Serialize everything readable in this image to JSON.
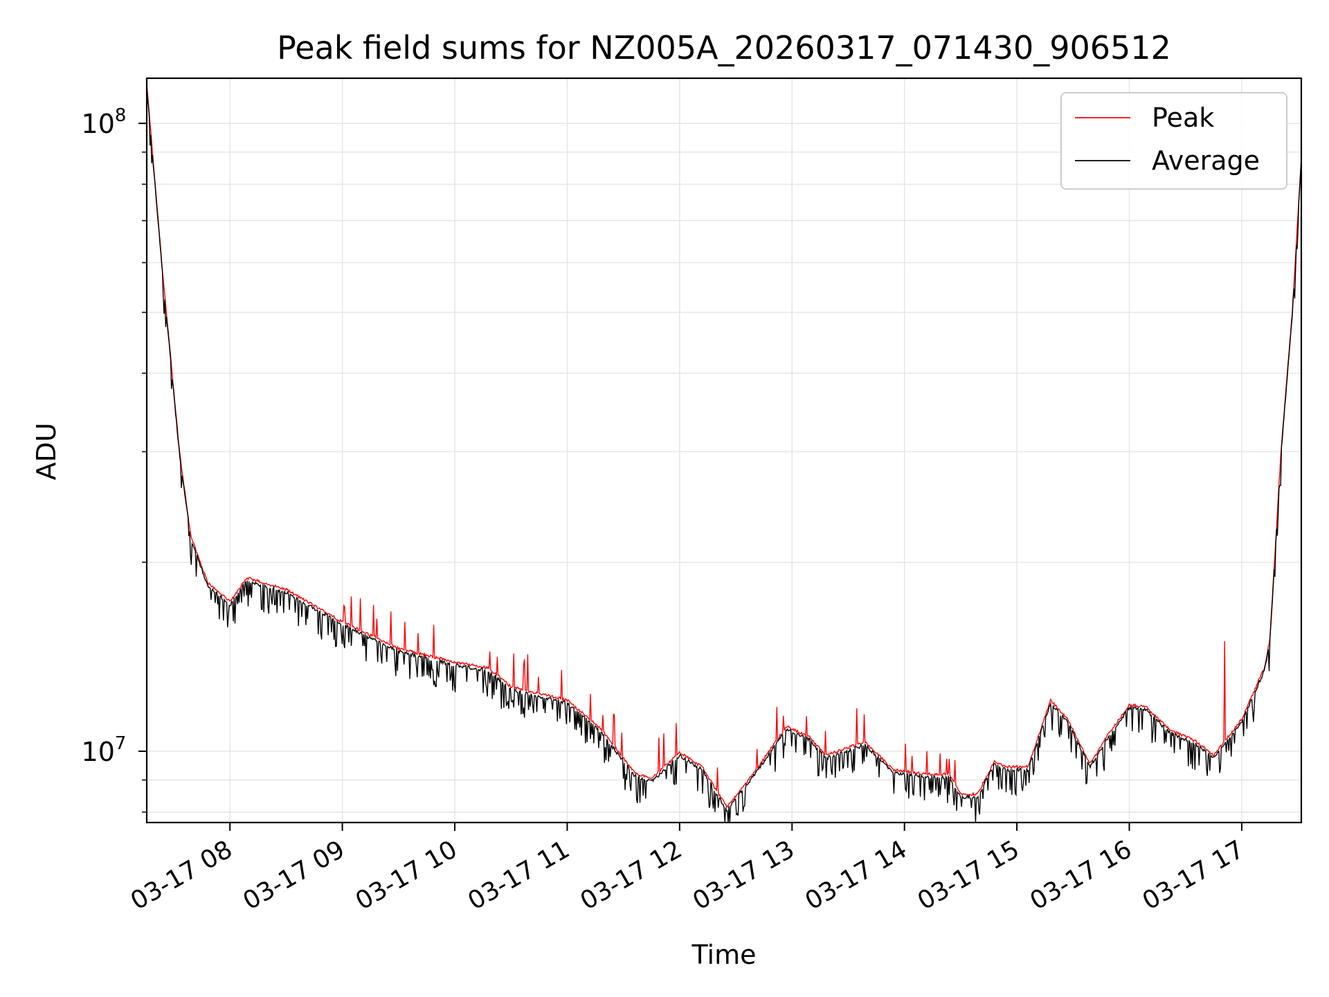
{
  "chart_data": {
    "type": "line",
    "title": "Peak field sums for NZ005A_20260317_071430_906512",
    "xlabel": "Time",
    "ylabel": "ADU",
    "yscale": "log",
    "ylim": [
      7700000,
      118000000
    ],
    "xlim_hours": [
      7.26,
      17.53
    ],
    "x_ticks": [
      {
        "value": 8,
        "label": "03-17 08"
      },
      {
        "value": 9,
        "label": "03-17 09"
      },
      {
        "value": 10,
        "label": "03-17 10"
      },
      {
        "value": 11,
        "label": "03-17 11"
      },
      {
        "value": 12,
        "label": "03-17 12"
      },
      {
        "value": 13,
        "label": "03-17 13"
      },
      {
        "value": 14,
        "label": "03-17 14"
      },
      {
        "value": 15,
        "label": "03-17 15"
      },
      {
        "value": 16,
        "label": "03-17 16"
      },
      {
        "value": 17,
        "label": "03-17 17"
      }
    ],
    "y_major_ticks": [
      {
        "value": 10000000,
        "base": "10",
        "exp": "7"
      },
      {
        "value": 100000000,
        "base": "10",
        "exp": "8"
      }
    ],
    "y_minor_ticks": [
      8000000,
      9000000,
      20000000,
      30000000,
      40000000,
      50000000,
      60000000,
      70000000,
      80000000,
      90000000
    ],
    "grid": true,
    "legend_position": "top-right",
    "series": [
      {
        "name": "Peak",
        "color": "#ff0000"
      },
      {
        "name": "Average",
        "color": "#000000"
      }
    ],
    "baseline": [
      [
        7.26,
        115000000
      ],
      [
        7.4,
        58000000
      ],
      [
        7.55,
        30000000
      ],
      [
        7.65,
        22000000
      ],
      [
        7.8,
        18500000
      ],
      [
        8.0,
        17200000
      ],
      [
        8.15,
        18800000
      ],
      [
        8.5,
        18000000
      ],
      [
        9.0,
        16000000
      ],
      [
        9.5,
        14500000
      ],
      [
        10.0,
        13800000
      ],
      [
        10.3,
        13500000
      ],
      [
        10.5,
        12600000
      ],
      [
        11.0,
        12000000
      ],
      [
        11.3,
        10800000
      ],
      [
        11.6,
        9200000
      ],
      [
        11.75,
        9000000
      ],
      [
        12.0,
        9900000
      ],
      [
        12.2,
        9400000
      ],
      [
        12.42,
        8100000
      ],
      [
        12.7,
        9400000
      ],
      [
        12.95,
        10900000
      ],
      [
        13.15,
        10500000
      ],
      [
        13.3,
        9800000
      ],
      [
        13.65,
        10300000
      ],
      [
        13.9,
        9300000
      ],
      [
        14.2,
        9150000
      ],
      [
        14.4,
        9150000
      ],
      [
        14.5,
        8500000
      ],
      [
        14.65,
        8500000
      ],
      [
        14.8,
        9600000
      ],
      [
        14.9,
        9400000
      ],
      [
        15.1,
        9400000
      ],
      [
        15.3,
        12000000
      ],
      [
        15.45,
        11200000
      ],
      [
        15.65,
        9500000
      ],
      [
        15.8,
        10500000
      ],
      [
        16.0,
        11800000
      ],
      [
        16.15,
        11700000
      ],
      [
        16.35,
        10800000
      ],
      [
        16.6,
        10300000
      ],
      [
        16.75,
        9800000
      ],
      [
        17.0,
        11200000
      ],
      [
        17.2,
        13500000
      ],
      [
        17.25,
        15000000
      ],
      [
        17.35,
        30000000
      ],
      [
        17.45,
        50000000
      ],
      [
        17.53,
        88000000
      ]
    ]
  }
}
